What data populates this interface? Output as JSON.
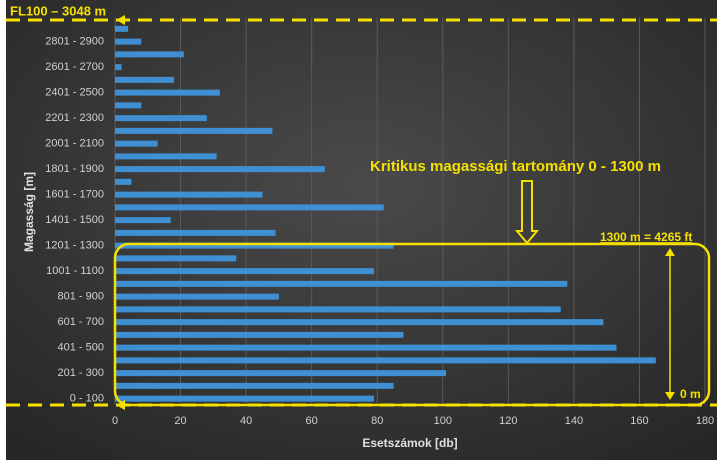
{
  "chart_data": {
    "type": "hbar",
    "xlabel": "Esetszámok [db]",
    "ylabel": "Magasság  [m]",
    "categories": [
      "0 - 100",
      null,
      "201 - 300",
      null,
      "401 - 500",
      null,
      "601 - 700",
      null,
      "801 - 900",
      null,
      "1001 - 1100",
      null,
      "1201 - 1300",
      null,
      "1401 - 1500",
      null,
      "1601 - 1700",
      null,
      "1801 - 1900",
      null,
      "2001 - 2100",
      null,
      "2201 - 2300",
      null,
      "2401 - 2500",
      null,
      "2601 - 2700",
      null,
      "2801 - 2900",
      null
    ],
    "values": [
      79,
      85,
      101,
      165,
      153,
      88,
      149,
      136,
      50,
      138,
      79,
      37,
      85,
      49,
      17,
      82,
      45,
      5,
      64,
      31,
      13,
      48,
      28,
      8,
      32,
      18,
      2,
      21,
      8,
      4
    ],
    "color": "#3f8fd2",
    "xlim": [
      0,
      180
    ],
    "xticks": [
      0,
      20,
      40,
      60,
      80,
      100,
      120,
      140,
      160,
      180
    ],
    "grid": true,
    "annotations": [
      "FL100 – 3048 m",
      "Kritikus magassági tartomány  0 - 1300 m",
      "1300 m = 4265 ft",
      "0 m"
    ]
  }
}
